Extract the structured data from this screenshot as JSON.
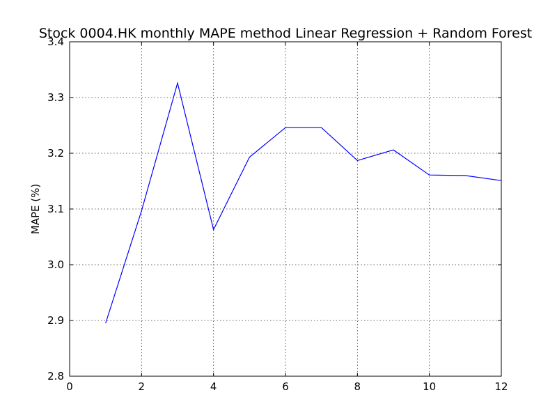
{
  "chart_data": {
    "type": "line",
    "title": "Stock 0004.HK monthly MAPE method Linear Regression + Random Forest",
    "xlabel": "",
    "ylabel": "MAPE (%)",
    "xlim": [
      0,
      12
    ],
    "ylim": [
      2.8,
      3.4
    ],
    "xticks": [
      0,
      2,
      4,
      6,
      8,
      10,
      12
    ],
    "xtick_labels": [
      "0",
      "2",
      "4",
      "6",
      "8",
      "10",
      "12"
    ],
    "yticks": [
      2.8,
      2.9,
      3.0,
      3.1,
      3.2,
      3.3,
      3.4
    ],
    "ytick_labels": [
      "2.8",
      "2.9",
      "3.0",
      "3.1",
      "3.2",
      "3.3",
      "3.4"
    ],
    "grid": true,
    "series": [
      {
        "color": "#0000ff",
        "x": [
          1,
          2,
          3,
          4,
          5,
          6,
          7,
          8,
          9,
          10,
          11,
          12
        ],
        "y": [
          2.895,
          3.097,
          3.326,
          3.063,
          3.193,
          3.246,
          3.246,
          3.187,
          3.206,
          3.161,
          3.16,
          3.151
        ]
      }
    ]
  }
}
